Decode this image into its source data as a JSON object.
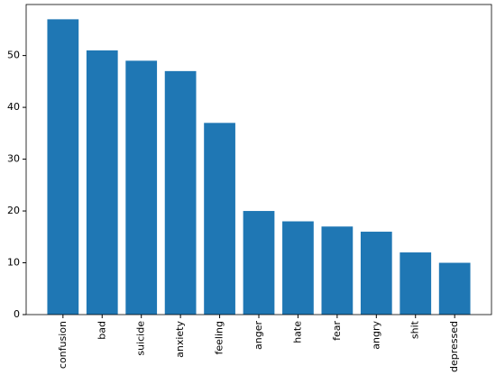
{
  "chart_data": {
    "type": "bar",
    "categories": [
      "confusion",
      "bad",
      "suicide",
      "anxiety",
      "feeling",
      "anger",
      "hate",
      "fear",
      "angry",
      "shit",
      "depressed"
    ],
    "values": [
      57,
      51,
      49,
      47,
      37,
      20,
      18,
      17,
      16,
      12,
      10
    ],
    "color": "#1f77b4",
    "ylim": [
      0,
      59.85
    ],
    "yticks": [
      0,
      10,
      20,
      30,
      40,
      50
    ],
    "grid": false
  }
}
